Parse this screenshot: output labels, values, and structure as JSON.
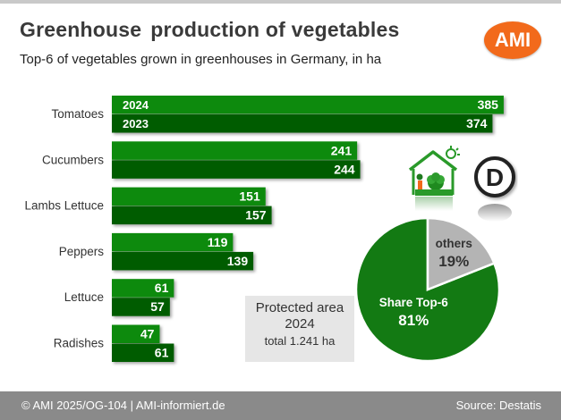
{
  "header": {
    "title_part1": "Greenhouse",
    "title_part2": "production of vegetables",
    "subtitle": "Top-6 of vegetables grown in greenhouses in Germany, in ha",
    "logo_text": "AMI"
  },
  "chart_data": [
    {
      "type": "bar",
      "orientation": "horizontal",
      "categories": [
        "Tomatoes",
        "Cucumbers",
        "Lambs Lettuce",
        "Peppers",
        "Lettuce",
        "Radishes"
      ],
      "series": [
        {
          "name": "2024",
          "values": [
            385,
            241,
            151,
            119,
            61,
            47
          ],
          "color": "#0a8a0a"
        },
        {
          "name": "2023",
          "values": [
            374,
            244,
            157,
            139,
            57,
            61
          ],
          "color": "#065c06"
        }
      ],
      "value_unit": "ha",
      "xlim": [
        0,
        400
      ]
    },
    {
      "type": "pie",
      "slices": [
        {
          "label": "Share Top-6",
          "value": 81,
          "display": "81%",
          "color": "#137a13"
        },
        {
          "label": "others",
          "value": 19,
          "display": "19%",
          "color": "#b4b4b4"
        }
      ]
    }
  ],
  "protected_area": {
    "line1": "Protected area",
    "line2": "2024",
    "line3": "total 1.241 ha"
  },
  "badge_letter": "D",
  "icons": [
    "greenhouse-icon",
    "germany-d-badge-icon"
  ],
  "footer": {
    "left": "© AMI 2025/OG-104 | AMI-informiert.de",
    "right": "Source: Destatis"
  },
  "colors": {
    "bar_2024": "#0a8a0a",
    "bar_2023": "#065c06",
    "accent": "#f26a1b",
    "footer_bg": "#8a8a8a"
  }
}
